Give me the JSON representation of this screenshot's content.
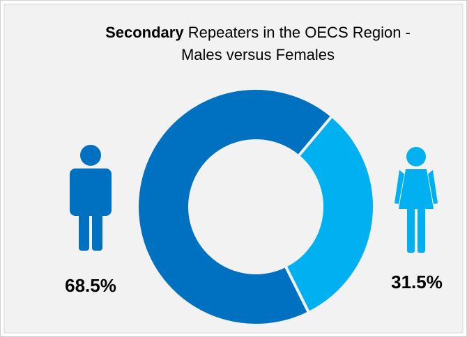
{
  "chart_data": {
    "type": "donut",
    "title": [
      "Secondary",
      "Repeaters in the OECS Region -",
      "Males versus Females"
    ],
    "values": [
      68.5,
      31.5
    ],
    "value_labels": [
      "68.5%",
      "31.5%"
    ],
    "colors": [
      "#0070c0",
      "#00b0f0"
    ]
  }
}
